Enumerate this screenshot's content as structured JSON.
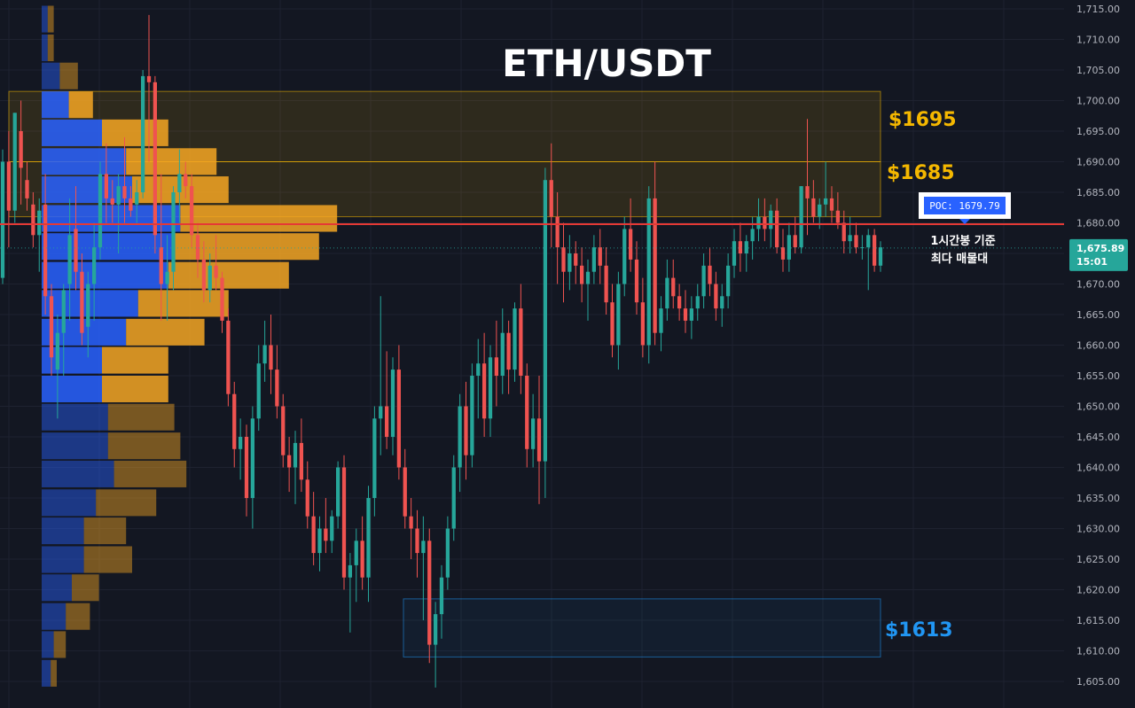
{
  "chart_data": {
    "type": "candlestick",
    "title": "ETH/USDT",
    "timeframe_note_line1": "1시간봉 기준",
    "timeframe_note_line2": "최다 매물대",
    "y_axis": {
      "ylim": [
        1602,
        1717
      ],
      "ticks": [
        1715,
        1710,
        1705,
        1700,
        1695,
        1690,
        1685,
        1680,
        1675,
        1670,
        1665,
        1660,
        1655,
        1650,
        1645,
        1640,
        1635,
        1630,
        1625,
        1620,
        1615,
        1610,
        1605
      ],
      "tick_labels": [
        "1,715.00",
        "1,710.00",
        "1,705.00",
        "1,700.00",
        "1,695.00",
        "1,690.00",
        "1,685.00",
        "1,680.00",
        "1,675.00",
        "1,670.00",
        "1,665.00",
        "1,660.00",
        "1,655.00",
        "1,650.00",
        "1,645.00",
        "1,640.00",
        "1,635.00",
        "1,630.00",
        "1,625.00",
        "1,620.00",
        "1,615.00",
        "1,610.00",
        "1,605.00"
      ]
    },
    "last_price": {
      "price": 1675.89,
      "label": "1,675.89",
      "countdown": "15:01",
      "color": "#26a69a"
    },
    "poc": {
      "label": "POC: 1679.79",
      "price": 1679.79,
      "color": "#e53935"
    },
    "zones": [
      {
        "name": "resistance-1695",
        "label": "$1695",
        "from": 1690,
        "to": 1701.5,
        "color": "#f5b800"
      },
      {
        "name": "resistance-1685",
        "label": "$1685",
        "from": 1681,
        "to": 1690,
        "color": "#f5b800"
      },
      {
        "name": "support-1613",
        "label": "$1613",
        "from": 1609,
        "to": 1618.5,
        "color": "#2196f3"
      }
    ],
    "volume_profile": {
      "bin_size": 4.65,
      "bins": [
        {
          "low": 1604.0,
          "up": 3,
          "down": 2
        },
        {
          "low": 1608.7,
          "up": 4,
          "down": 4
        },
        {
          "low": 1613.3,
          "up": 8,
          "down": 8
        },
        {
          "low": 1618.0,
          "up": 10,
          "down": 9
        },
        {
          "low": 1622.6,
          "up": 14,
          "down": 16
        },
        {
          "low": 1627.3,
          "up": 14,
          "down": 14
        },
        {
          "low": 1631.9,
          "up": 18,
          "down": 20
        },
        {
          "low": 1636.6,
          "up": 24,
          "down": 24
        },
        {
          "low": 1641.2,
          "up": 22,
          "down": 24
        },
        {
          "low": 1645.9,
          "up": 22,
          "down": 22
        },
        {
          "low": 1650.5,
          "up": 20,
          "down": 22
        },
        {
          "low": 1655.2,
          "up": 20,
          "down": 22
        },
        {
          "low": 1659.8,
          "up": 28,
          "down": 26
        },
        {
          "low": 1664.5,
          "up": 32,
          "down": 30
        },
        {
          "low": 1669.1,
          "up": 42,
          "down": 40
        },
        {
          "low": 1673.8,
          "up": 44,
          "down": 48
        },
        {
          "low": 1678.4,
          "up": 46,
          "down": 52
        },
        {
          "low": 1683.1,
          "up": 30,
          "down": 32
        },
        {
          "low": 1687.7,
          "up": 28,
          "down": 30
        },
        {
          "low": 1692.4,
          "up": 20,
          "down": 22
        },
        {
          "low": 1697.0,
          "up": 9,
          "down": 8
        },
        {
          "low": 1701.7,
          "up": 6,
          "down": 6
        },
        {
          "low": 1706.3,
          "up": 2,
          "down": 2
        },
        {
          "low": 1711.0,
          "up": 2,
          "down": 2
        }
      ],
      "up_color": "#2962ff",
      "down_color": "#f5a623"
    },
    "candles": [
      {
        "o": 1671,
        "h": 1692,
        "l": 1670,
        "c": 1690
      },
      {
        "o": 1690,
        "h": 1695,
        "l": 1676,
        "c": 1682
      },
      {
        "o": 1682,
        "h": 1698,
        "l": 1680,
        "c": 1698
      },
      {
        "o": 1695,
        "h": 1700,
        "l": 1683,
        "c": 1689
      },
      {
        "o": 1687,
        "h": 1690,
        "l": 1682,
        "c": 1684
      },
      {
        "o": 1683,
        "h": 1685,
        "l": 1676,
        "c": 1678
      },
      {
        "o": 1678,
        "h": 1684,
        "l": 1672,
        "c": 1682
      },
      {
        "o": 1683,
        "h": 1688,
        "l": 1665,
        "c": 1668
      },
      {
        "o": 1668,
        "h": 1670,
        "l": 1655,
        "c": 1658
      },
      {
        "o": 1656,
        "h": 1665,
        "l": 1648,
        "c": 1662
      },
      {
        "o": 1662,
        "h": 1670,
        "l": 1655,
        "c": 1669
      },
      {
        "o": 1670,
        "h": 1684,
        "l": 1664,
        "c": 1678
      },
      {
        "o": 1679,
        "h": 1686,
        "l": 1669,
        "c": 1672
      },
      {
        "o": 1672,
        "h": 1675,
        "l": 1660,
        "c": 1662
      },
      {
        "o": 1663,
        "h": 1672,
        "l": 1658,
        "c": 1670
      },
      {
        "o": 1670,
        "h": 1680,
        "l": 1664,
        "c": 1676
      },
      {
        "o": 1676,
        "h": 1690,
        "l": 1674,
        "c": 1688
      },
      {
        "o": 1688,
        "h": 1693,
        "l": 1680,
        "c": 1684
      },
      {
        "o": 1684,
        "h": 1687,
        "l": 1680,
        "c": 1683
      },
      {
        "o": 1683,
        "h": 1688,
        "l": 1675,
        "c": 1686
      },
      {
        "o": 1686,
        "h": 1694,
        "l": 1680,
        "c": 1684
      },
      {
        "o": 1684,
        "h": 1686,
        "l": 1681,
        "c": 1682
      },
      {
        "o": 1683,
        "h": 1687,
        "l": 1680,
        "c": 1685
      },
      {
        "o": 1685,
        "h": 1705,
        "l": 1684,
        "c": 1704
      },
      {
        "o": 1704,
        "h": 1714,
        "l": 1690,
        "c": 1703
      },
      {
        "o": 1703,
        "h": 1704,
        "l": 1675,
        "c": 1678
      },
      {
        "o": 1676,
        "h": 1688,
        "l": 1664,
        "c": 1670
      },
      {
        "o": 1670,
        "h": 1678,
        "l": 1664,
        "c": 1672
      },
      {
        "o": 1672,
        "h": 1686,
        "l": 1669,
        "c": 1685
      },
      {
        "o": 1685,
        "h": 1692,
        "l": 1680,
        "c": 1688
      },
      {
        "o": 1688,
        "h": 1690,
        "l": 1684,
        "c": 1686
      },
      {
        "o": 1686,
        "h": 1688,
        "l": 1676,
        "c": 1678
      },
      {
        "o": 1678,
        "h": 1680,
        "l": 1671,
        "c": 1674
      },
      {
        "o": 1674,
        "h": 1677,
        "l": 1667,
        "c": 1669
      },
      {
        "o": 1669,
        "h": 1675,
        "l": 1667,
        "c": 1673
      },
      {
        "o": 1673,
        "h": 1678,
        "l": 1669,
        "c": 1671
      },
      {
        "o": 1671,
        "h": 1672,
        "l": 1662,
        "c": 1664
      },
      {
        "o": 1664,
        "h": 1666,
        "l": 1650,
        "c": 1652
      },
      {
        "o": 1652,
        "h": 1654,
        "l": 1640,
        "c": 1643
      },
      {
        "o": 1643,
        "h": 1648,
        "l": 1638,
        "c": 1645
      },
      {
        "o": 1645,
        "h": 1647,
        "l": 1632,
        "c": 1635
      },
      {
        "o": 1635,
        "h": 1650,
        "l": 1630,
        "c": 1648
      },
      {
        "o": 1648,
        "h": 1660,
        "l": 1646,
        "c": 1657
      },
      {
        "o": 1657,
        "h": 1664,
        "l": 1654,
        "c": 1660
      },
      {
        "o": 1660,
        "h": 1665,
        "l": 1652,
        "c": 1656
      },
      {
        "o": 1656,
        "h": 1660,
        "l": 1648,
        "c": 1650
      },
      {
        "o": 1650,
        "h": 1652,
        "l": 1640,
        "c": 1642
      },
      {
        "o": 1642,
        "h": 1645,
        "l": 1636,
        "c": 1640
      },
      {
        "o": 1640,
        "h": 1646,
        "l": 1634,
        "c": 1644
      },
      {
        "o": 1644,
        "h": 1648,
        "l": 1636,
        "c": 1638
      },
      {
        "o": 1638,
        "h": 1641,
        "l": 1630,
        "c": 1632
      },
      {
        "o": 1632,
        "h": 1636,
        "l": 1624,
        "c": 1626
      },
      {
        "o": 1626,
        "h": 1632,
        "l": 1623,
        "c": 1630
      },
      {
        "o": 1630,
        "h": 1635,
        "l": 1626,
        "c": 1628
      },
      {
        "o": 1628,
        "h": 1633,
        "l": 1626,
        "c": 1632
      },
      {
        "o": 1632,
        "h": 1641,
        "l": 1630,
        "c": 1640
      },
      {
        "o": 1640,
        "h": 1642,
        "l": 1620,
        "c": 1622
      },
      {
        "o": 1622,
        "h": 1626,
        "l": 1613,
        "c": 1624
      },
      {
        "o": 1624,
        "h": 1630,
        "l": 1618,
        "c": 1628
      },
      {
        "o": 1628,
        "h": 1632,
        "l": 1620,
        "c": 1622
      },
      {
        "o": 1622,
        "h": 1637,
        "l": 1618,
        "c": 1635
      },
      {
        "o": 1635,
        "h": 1650,
        "l": 1632,
        "c": 1648
      },
      {
        "o": 1648,
        "h": 1668,
        "l": 1642,
        "c": 1650
      },
      {
        "o": 1650,
        "h": 1659,
        "l": 1643,
        "c": 1645
      },
      {
        "o": 1645,
        "h": 1658,
        "l": 1642,
        "c": 1656
      },
      {
        "o": 1656,
        "h": 1660,
        "l": 1638,
        "c": 1640
      },
      {
        "o": 1640,
        "h": 1643,
        "l": 1630,
        "c": 1632
      },
      {
        "o": 1632,
        "h": 1635,
        "l": 1625,
        "c": 1630
      },
      {
        "o": 1630,
        "h": 1633,
        "l": 1622,
        "c": 1626
      },
      {
        "o": 1626,
        "h": 1632,
        "l": 1615,
        "c": 1628
      },
      {
        "o": 1628,
        "h": 1630,
        "l": 1608,
        "c": 1611
      },
      {
        "o": 1611,
        "h": 1618,
        "l": 1604,
        "c": 1616
      },
      {
        "o": 1616,
        "h": 1624,
        "l": 1612,
        "c": 1622
      },
      {
        "o": 1622,
        "h": 1632,
        "l": 1620,
        "c": 1630
      },
      {
        "o": 1630,
        "h": 1642,
        "l": 1628,
        "c": 1640
      },
      {
        "o": 1640,
        "h": 1652,
        "l": 1636,
        "c": 1650
      },
      {
        "o": 1650,
        "h": 1654,
        "l": 1638,
        "c": 1642
      },
      {
        "o": 1642,
        "h": 1657,
        "l": 1640,
        "c": 1655
      },
      {
        "o": 1655,
        "h": 1661,
        "l": 1648,
        "c": 1657
      },
      {
        "o": 1657,
        "h": 1662,
        "l": 1645,
        "c": 1648
      },
      {
        "o": 1648,
        "h": 1660,
        "l": 1645,
        "c": 1658
      },
      {
        "o": 1658,
        "h": 1664,
        "l": 1650,
        "c": 1655
      },
      {
        "o": 1655,
        "h": 1666,
        "l": 1652,
        "c": 1662
      },
      {
        "o": 1662,
        "h": 1664,
        "l": 1652,
        "c": 1656
      },
      {
        "o": 1656,
        "h": 1667,
        "l": 1654,
        "c": 1666
      },
      {
        "o": 1666,
        "h": 1670,
        "l": 1652,
        "c": 1655
      },
      {
        "o": 1655,
        "h": 1657,
        "l": 1640,
        "c": 1643
      },
      {
        "o": 1643,
        "h": 1652,
        "l": 1640,
        "c": 1648
      },
      {
        "o": 1648,
        "h": 1655,
        "l": 1634,
        "c": 1641
      },
      {
        "o": 1641,
        "h": 1689,
        "l": 1635,
        "c": 1687
      },
      {
        "o": 1687,
        "h": 1693,
        "l": 1676,
        "c": 1681
      },
      {
        "o": 1681,
        "h": 1685,
        "l": 1670,
        "c": 1676
      },
      {
        "o": 1676,
        "h": 1680,
        "l": 1667,
        "c": 1672
      },
      {
        "o": 1672,
        "h": 1678,
        "l": 1669,
        "c": 1675
      },
      {
        "o": 1675,
        "h": 1677,
        "l": 1670,
        "c": 1673
      },
      {
        "o": 1673,
        "h": 1676,
        "l": 1667,
        "c": 1670
      },
      {
        "o": 1670,
        "h": 1674,
        "l": 1664,
        "c": 1672
      },
      {
        "o": 1672,
        "h": 1678,
        "l": 1670,
        "c": 1676
      },
      {
        "o": 1676,
        "h": 1679,
        "l": 1670,
        "c": 1673
      },
      {
        "o": 1673,
        "h": 1676,
        "l": 1665,
        "c": 1667
      },
      {
        "o": 1667,
        "h": 1670,
        "l": 1658,
        "c": 1660
      },
      {
        "o": 1660,
        "h": 1672,
        "l": 1656,
        "c": 1670
      },
      {
        "o": 1670,
        "h": 1681,
        "l": 1668,
        "c": 1679
      },
      {
        "o": 1679,
        "h": 1684,
        "l": 1672,
        "c": 1674
      },
      {
        "o": 1674,
        "h": 1677,
        "l": 1665,
        "c": 1667
      },
      {
        "o": 1667,
        "h": 1671,
        "l": 1658,
        "c": 1660
      },
      {
        "o": 1660,
        "h": 1686,
        "l": 1657,
        "c": 1684
      },
      {
        "o": 1684,
        "h": 1690,
        "l": 1660,
        "c": 1662
      },
      {
        "o": 1662,
        "h": 1668,
        "l": 1659,
        "c": 1666
      },
      {
        "o": 1666,
        "h": 1674,
        "l": 1664,
        "c": 1671
      },
      {
        "o": 1671,
        "h": 1674,
        "l": 1666,
        "c": 1668
      },
      {
        "o": 1668,
        "h": 1670,
        "l": 1664,
        "c": 1666
      },
      {
        "o": 1666,
        "h": 1669,
        "l": 1662,
        "c": 1664
      },
      {
        "o": 1664,
        "h": 1668,
        "l": 1661,
        "c": 1666
      },
      {
        "o": 1666,
        "h": 1670,
        "l": 1664,
        "c": 1668
      },
      {
        "o": 1668,
        "h": 1675,
        "l": 1666,
        "c": 1673
      },
      {
        "o": 1673,
        "h": 1676,
        "l": 1668,
        "c": 1670
      },
      {
        "o": 1670,
        "h": 1672,
        "l": 1664,
        "c": 1666
      },
      {
        "o": 1666,
        "h": 1670,
        "l": 1663,
        "c": 1668
      },
      {
        "o": 1668,
        "h": 1675,
        "l": 1666,
        "c": 1673
      },
      {
        "o": 1673,
        "h": 1679,
        "l": 1671,
        "c": 1677
      },
      {
        "o": 1677,
        "h": 1680,
        "l": 1672,
        "c": 1675
      },
      {
        "o": 1675,
        "h": 1678,
        "l": 1672,
        "c": 1677
      },
      {
        "o": 1677,
        "h": 1681,
        "l": 1674,
        "c": 1679
      },
      {
        "o": 1679,
        "h": 1684,
        "l": 1677,
        "c": 1681
      },
      {
        "o": 1681,
        "h": 1684,
        "l": 1677,
        "c": 1679
      },
      {
        "o": 1679,
        "h": 1683,
        "l": 1676,
        "c": 1682
      },
      {
        "o": 1682,
        "h": 1684,
        "l": 1675,
        "c": 1676
      },
      {
        "o": 1676,
        "h": 1679,
        "l": 1672,
        "c": 1674
      },
      {
        "o": 1674,
        "h": 1680,
        "l": 1672,
        "c": 1678
      },
      {
        "o": 1678,
        "h": 1681,
        "l": 1675,
        "c": 1676
      },
      {
        "o": 1676,
        "h": 1686,
        "l": 1675,
        "c": 1686
      },
      {
        "o": 1686,
        "h": 1697,
        "l": 1678,
        "c": 1684
      },
      {
        "o": 1684,
        "h": 1687,
        "l": 1680,
        "c": 1681
      },
      {
        "o": 1681,
        "h": 1684,
        "l": 1679,
        "c": 1683
      },
      {
        "o": 1683,
        "h": 1690,
        "l": 1681,
        "c": 1684
      },
      {
        "o": 1684,
        "h": 1686,
        "l": 1680,
        "c": 1682
      },
      {
        "o": 1682,
        "h": 1685,
        "l": 1679,
        "c": 1680
      },
      {
        "o": 1680,
        "h": 1682,
        "l": 1675,
        "c": 1677
      },
      {
        "o": 1677,
        "h": 1681,
        "l": 1675,
        "c": 1678
      },
      {
        "o": 1678,
        "h": 1680,
        "l": 1675,
        "c": 1676
      },
      {
        "o": 1676,
        "h": 1678,
        "l": 1674,
        "c": 1676
      },
      {
        "o": 1676,
        "h": 1679,
        "l": 1669,
        "c": 1678
      },
      {
        "o": 1678,
        "h": 1679,
        "l": 1672,
        "c": 1673
      },
      {
        "o": 1673,
        "h": 1677,
        "l": 1672,
        "c": 1676
      }
    ],
    "colors": {
      "up": "#26a69a",
      "down": "#ef5350",
      "background": "#131722",
      "grid": "#1e2230",
      "axis_text": "#b2b5be"
    }
  }
}
